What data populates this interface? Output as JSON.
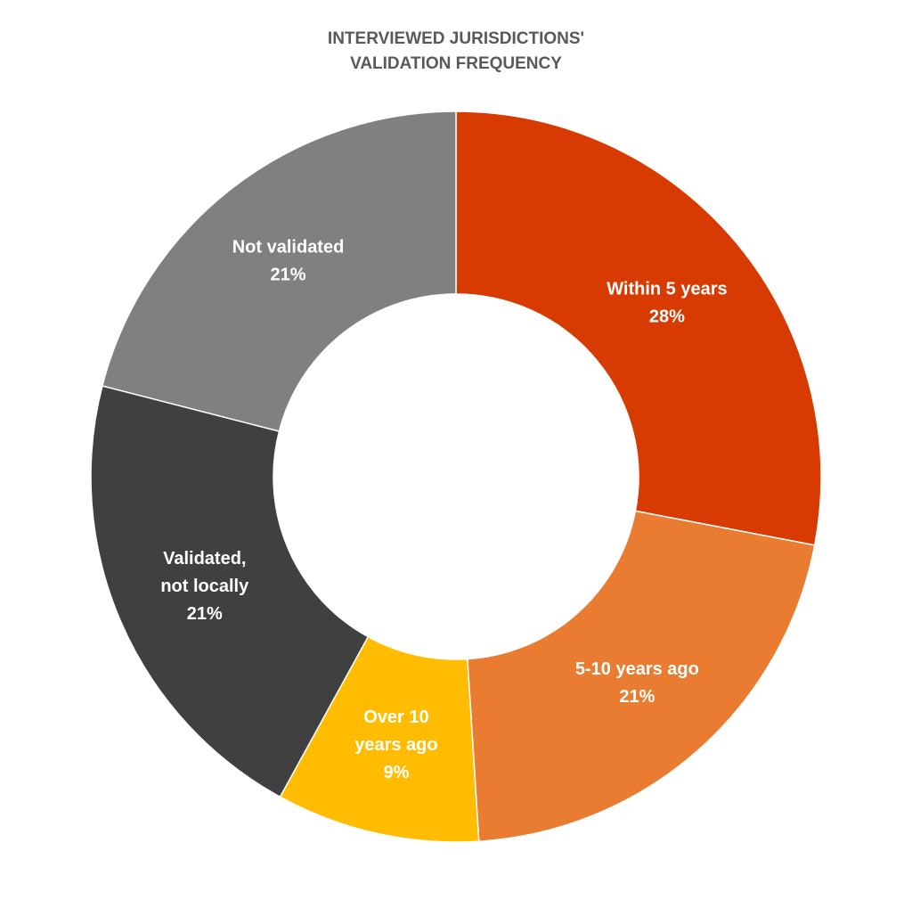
{
  "chart_data": {
    "type": "pie",
    "title_lines": [
      "INTERVIEWED JURISDICTIONS'",
      "VALIDATION FREQUENCY"
    ],
    "donut": true,
    "slices": [
      {
        "label_lines": [
          "Within 5 years"
        ],
        "value": 28,
        "value_label": "28%",
        "color": "#D83B01"
      },
      {
        "label_lines": [
          "5-10 years ago"
        ],
        "value": 21,
        "value_label": "21%",
        "color": "#E97C30"
      },
      {
        "label_lines": [
          "Over 10",
          "years ago"
        ],
        "value": 9,
        "value_label": "9%",
        "color": "#FFBC00"
      },
      {
        "label_lines": [
          "Validated,",
          "not locally"
        ],
        "value": 21,
        "value_label": "21%",
        "color": "#404040"
      },
      {
        "label_lines": [
          "Not validated"
        ],
        "value": 21,
        "value_label": "21%",
        "color": "#808080"
      }
    ]
  }
}
